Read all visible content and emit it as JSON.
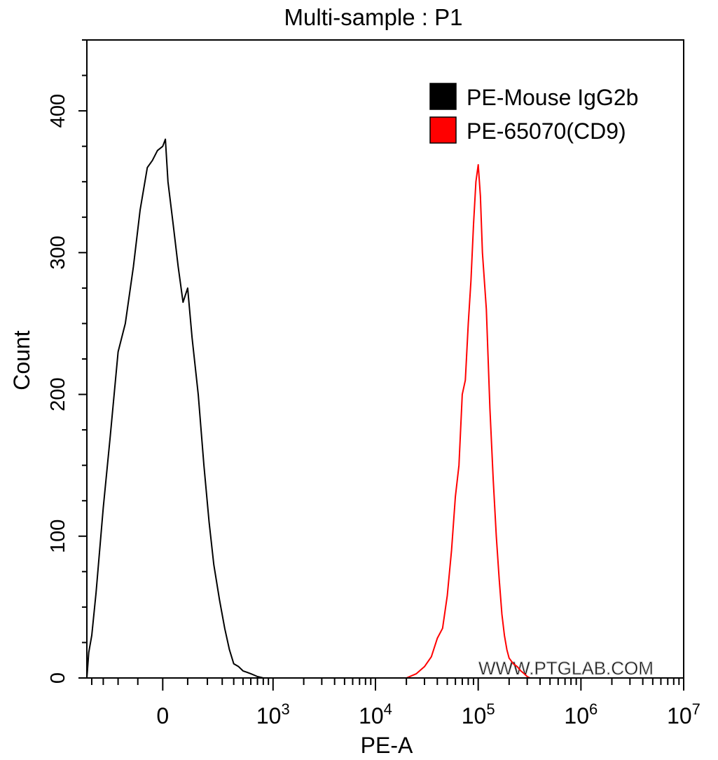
{
  "chart_data": {
    "type": "line",
    "title": "Multi-sample : P1",
    "xlabel": "PE-A",
    "ylabel": "Count",
    "x_scale": "biexponential",
    "xlim": [
      -450,
      10000000
    ],
    "ylim": [
      0,
      450
    ],
    "grid": false,
    "legend_position": "top-right",
    "x_ticks": [
      {
        "value": 0,
        "base": "0",
        "exp": ""
      },
      {
        "value": 1000,
        "base": "10",
        "exp": "3"
      },
      {
        "value": 10000,
        "base": "10",
        "exp": "4"
      },
      {
        "value": 100000,
        "base": "10",
        "exp": "5"
      },
      {
        "value": 1000000,
        "base": "10",
        "exp": "6"
      },
      {
        "value": 10000000,
        "base": "10",
        "exp": "7"
      }
    ],
    "y_ticks": [
      {
        "value": 0,
        "label": "0"
      },
      {
        "value": 100,
        "label": "100"
      },
      {
        "value": 200,
        "label": "200"
      },
      {
        "value": 300,
        "label": "300"
      },
      {
        "value": 400,
        "label": "400"
      }
    ],
    "series": [
      {
        "name": "PE-Mouse IgG2b",
        "color": "#000000",
        "x": [
          -450,
          -430,
          -400,
          -360,
          -300,
          -250,
          -200,
          -160,
          -120,
          -90,
          -60,
          -40,
          -20,
          0,
          10,
          20,
          40,
          60,
          80,
          100,
          120,
          150,
          180,
          210,
          240,
          280,
          320,
          360,
          400,
          450,
          500,
          550,
          600,
          650,
          700,
          750,
          800
        ],
        "y": [
          0,
          18,
          30,
          60,
          120,
          170,
          230,
          250,
          290,
          330,
          360,
          365,
          372,
          375,
          380,
          350,
          320,
          290,
          265,
          275,
          240,
          200,
          150,
          110,
          80,
          55,
          35,
          20,
          10,
          8,
          5,
          4,
          3,
          2,
          1,
          0.5,
          0
        ]
      },
      {
        "name": "PE-65070(CD9)",
        "color": "#ff0000",
        "x": [
          20000,
          25000,
          30000,
          35000,
          40000,
          45000,
          50000,
          55000,
          60000,
          65000,
          70000,
          75000,
          80000,
          85000,
          90000,
          95000,
          100000,
          105000,
          110000,
          120000,
          130000,
          140000,
          150000,
          160000,
          170000,
          180000,
          190000,
          200000,
          220000,
          240000,
          260000,
          280000,
          300000,
          320000
        ],
        "y": [
          0,
          3,
          8,
          15,
          28,
          35,
          58,
          90,
          128,
          150,
          200,
          210,
          250,
          280,
          320,
          350,
          362,
          340,
          300,
          260,
          190,
          140,
          100,
          70,
          45,
          30,
          20,
          14,
          10,
          8,
          5,
          3,
          1,
          0
        ]
      }
    ]
  },
  "watermark": "WWW.PTGLAB.COM"
}
